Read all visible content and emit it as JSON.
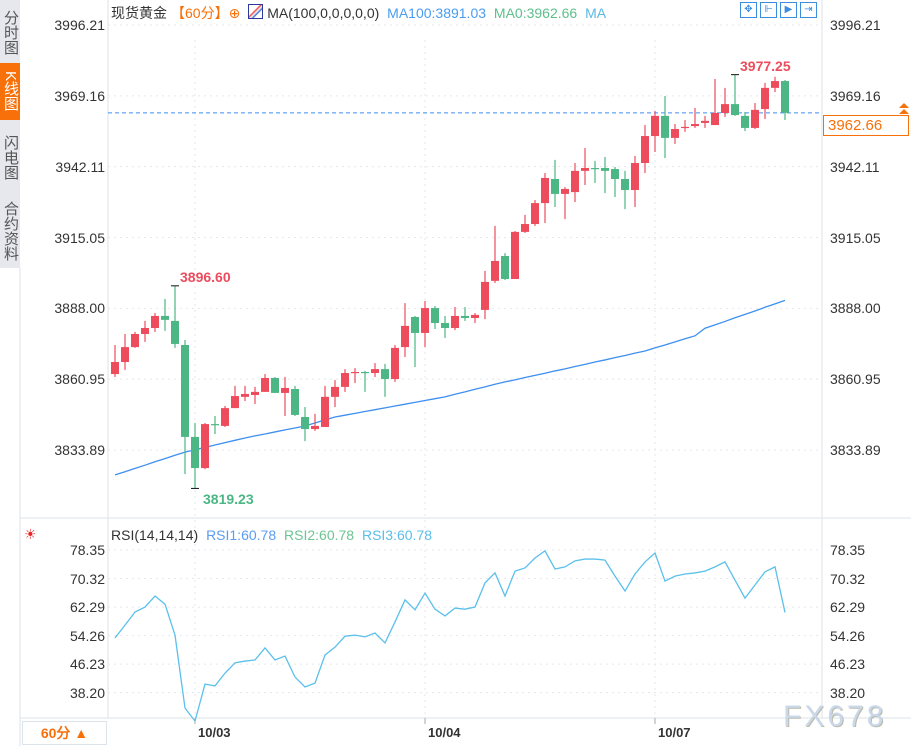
{
  "sidebar": {
    "tabs": [
      {
        "label": "分时图",
        "active": false
      },
      {
        "label": "K线图",
        "active": true
      },
      {
        "label": "闪电图",
        "active": false
      },
      {
        "label": "合约资料",
        "active": false
      }
    ]
  },
  "header": {
    "instrument": "现货黄金",
    "period": "【60分】",
    "settings_icon": "crosshair-circle-icon",
    "ma_params": "MA(100,0,0,0,0,0)",
    "ma100": "MA100:3891.03",
    "ma0": "MA0:3962.66",
    "ma_label": "MA",
    "tools": [
      "crosshair-icon",
      "fit-range-icon",
      "play-icon",
      "jump-to-latest-icon"
    ]
  },
  "colors": {
    "up": "#ec4c5c",
    "down": "#4cb784",
    "ma100": "#3d8ff0",
    "rsi": "#5bc0eb",
    "accent": "#f7700a"
  },
  "rsi_header": {
    "params": "RSI(14,14,14)",
    "rsi1": "RSI1:60.78",
    "rsi2": "RSI2:60.78",
    "rsi3": "RSI3:60.78",
    "icon": "sun-icon"
  },
  "last_price": "3962.66",
  "marks": {
    "high": "3896.60",
    "low": "3819.23",
    "recent_high": "3977.25"
  },
  "period_selector": "60分 ▲",
  "watermark": "FX678",
  "chart_data": [
    {
      "type": "candlestick",
      "title": "现货黄金",
      "y_ticks": [
        "3996.21",
        "3969.16",
        "3942.11",
        "3915.05",
        "3888.00",
        "3860.95",
        "3833.89"
      ],
      "ylim": [
        3819.23,
        3996.21
      ],
      "grid": true,
      "x_ticks": [
        {
          "label": "10/03",
          "index": 8
        },
        {
          "label": "10/04",
          "index": 31
        },
        {
          "label": "10/07",
          "index": 54
        }
      ],
      "ohlc": [
        [
          3862.9,
          3874.0,
          3861.8,
          3867.5
        ],
        [
          3867.5,
          3878.2,
          3864.5,
          3873.2
        ],
        [
          3873.2,
          3879.0,
          3872.9,
          3878.2
        ],
        [
          3878.2,
          3883.2,
          3875.2,
          3880.5
        ],
        [
          3880.5,
          3886.2,
          3879.0,
          3885.1
        ],
        [
          3885.1,
          3891.6,
          3879.4,
          3883.6
        ],
        [
          3883.2,
          3896.6,
          3872.9,
          3874.4
        ],
        [
          3874.0,
          3875.9,
          3824.7,
          3838.9
        ],
        [
          3838.9,
          3844.2,
          3819.23,
          3827.0
        ],
        [
          3827.0,
          3844.2,
          3826.6,
          3843.8
        ],
        [
          3843.8,
          3846.9,
          3840.0,
          3843.5
        ],
        [
          3843.1,
          3850.7,
          3842.7,
          3849.9
        ],
        [
          3849.9,
          3858.4,
          3849.9,
          3854.5
        ],
        [
          3854.2,
          3858.4,
          3852.6,
          3855.3
        ],
        [
          3854.9,
          3858.0,
          3851.5,
          3856.1
        ],
        [
          3856.1,
          3862.9,
          3856.1,
          3861.4
        ],
        [
          3861.4,
          3861.8,
          3855.7,
          3855.7
        ],
        [
          3855.7,
          3861.8,
          3846.9,
          3857.6
        ],
        [
          3857.2,
          3858.4,
          3846.9,
          3847.3
        ],
        [
          3846.5,
          3850.3,
          3837.3,
          3841.9
        ],
        [
          3841.9,
          3847.7,
          3841.2,
          3843.1
        ],
        [
          3842.7,
          3858.4,
          3842.7,
          3854.2
        ],
        [
          3854.2,
          3860.6,
          3850.3,
          3858.0
        ],
        [
          3858.0,
          3864.8,
          3856.1,
          3863.3
        ],
        [
          3863.3,
          3865.2,
          3859.5,
          3863.7
        ],
        [
          3863.7,
          3864.1,
          3856.1,
          3863.3
        ],
        [
          3863.3,
          3867.1,
          3861.8,
          3864.8
        ],
        [
          3864.8,
          3866.8,
          3854.2,
          3861.0
        ],
        [
          3861.0,
          3874.0,
          3859.9,
          3872.9
        ],
        [
          3873.2,
          3890.0,
          3869.4,
          3881.3
        ],
        [
          3884.7,
          3885.1,
          3865.6,
          3878.6
        ],
        [
          3878.6,
          3890.8,
          3873.2,
          3888.1
        ],
        [
          3888.1,
          3888.9,
          3880.1,
          3882.4
        ],
        [
          3882.4,
          3885.1,
          3876.7,
          3880.5
        ],
        [
          3880.5,
          3888.5,
          3879.7,
          3885.1
        ],
        [
          3885.1,
          3888.5,
          3883.2,
          3884.3
        ],
        [
          3884.3,
          3886.2,
          3882.4,
          3885.5
        ],
        [
          3887.4,
          3902.3,
          3883.9,
          3898.1
        ],
        [
          3898.5,
          3919.5,
          3897.7,
          3906.1
        ],
        [
          3908.0,
          3909.1,
          3898.8,
          3899.2
        ],
        [
          3899.2,
          3917.5,
          3899.2,
          3917.2
        ],
        [
          3917.2,
          3923.7,
          3916.8,
          3920.2
        ],
        [
          3920.2,
          3929.4,
          3919.5,
          3928.2
        ],
        [
          3928.2,
          3939.7,
          3920.6,
          3937.8
        ],
        [
          3937.4,
          3944.7,
          3926.7,
          3931.7
        ],
        [
          3931.7,
          3934.3,
          3922.1,
          3933.6
        ],
        [
          3932.4,
          3943.5,
          3928.6,
          3940.5
        ],
        [
          3940.5,
          3949.2,
          3935.1,
          3941.6
        ],
        [
          3941.6,
          3944.3,
          3935.9,
          3941.2
        ],
        [
          3941.6,
          3945.8,
          3932.0,
          3940.5
        ],
        [
          3941.2,
          3942.0,
          3930.5,
          3937.4
        ],
        [
          3937.4,
          3940.5,
          3925.9,
          3933.2
        ],
        [
          3933.2,
          3946.2,
          3926.7,
          3943.5
        ],
        [
          3943.5,
          3958.0,
          3939.7,
          3953.8
        ],
        [
          3953.8,
          3963.4,
          3947.7,
          3961.5
        ],
        [
          3961.5,
          3969.1,
          3945.4,
          3953.1
        ],
        [
          3953.1,
          3958.4,
          3950.8,
          3956.5
        ],
        [
          3956.9,
          3959.9,
          3955.4,
          3957.3
        ],
        [
          3957.6,
          3964.5,
          3956.9,
          3958.4
        ],
        [
          3958.8,
          3961.5,
          3956.9,
          3959.6
        ],
        [
          3958.0,
          3975.6,
          3958.0,
          3962.6
        ],
        [
          3962.6,
          3972.2,
          3961.1,
          3966.0
        ],
        [
          3966.0,
          3977.25,
          3961.5,
          3961.8
        ],
        [
          3961.5,
          3963.0,
          3955.7,
          3956.9
        ],
        [
          3956.9,
          3966.4,
          3956.5,
          3963.8
        ],
        [
          3964.1,
          3974.1,
          3960.3,
          3972.2
        ],
        [
          3972.2,
          3976.4,
          3970.6,
          3974.8
        ],
        [
          3974.8,
          3975.2,
          3959.9,
          3962.66
        ]
      ],
      "ma100": [
        3824.4,
        3825.6,
        3826.9,
        3828.1,
        3829.4,
        3830.6,
        3831.9,
        3833.1,
        3834.0,
        3834.9,
        3835.8,
        3836.7,
        3837.6,
        3838.5,
        3839.3,
        3840.0,
        3840.8,
        3841.6,
        3842.3,
        3843.1,
        3844.2,
        3845.4,
        3846.5,
        3847.2,
        3847.9,
        3848.6,
        3849.3,
        3850.0,
        3850.7,
        3851.4,
        3852.1,
        3852.8,
        3853.5,
        3854.2,
        3855.2,
        3856.1,
        3857.1,
        3858.0,
        3859.0,
        3859.9,
        3860.7,
        3861.6,
        3862.4,
        3863.2,
        3864.1,
        3864.9,
        3865.8,
        3866.6,
        3867.5,
        3868.3,
        3869.2,
        3870.0,
        3870.9,
        3871.7,
        3872.9,
        3874.0,
        3875.2,
        3876.4,
        3877.5,
        3880.4,
        3881.7,
        3883.0,
        3884.4,
        3885.7,
        3887.0,
        3888.4,
        3889.7,
        3891.03
      ]
    },
    {
      "type": "line",
      "title": "RSI(14,14,14)",
      "y_ticks": [
        "78.35",
        "70.32",
        "62.29",
        "54.26",
        "46.23",
        "38.20"
      ],
      "ylim": [
        30.2,
        78.35
      ],
      "grid": true,
      "values": [
        53.6,
        57.2,
        60.9,
        62.3,
        65.4,
        63.1,
        54.4,
        33.9,
        30.2,
        40.6,
        40.1,
        43.7,
        46.6,
        47.1,
        47.4,
        50.8,
        47.4,
        48.5,
        42.6,
        39.8,
        40.9,
        48.8,
        51.0,
        54.1,
        54.4,
        53.9,
        55.0,
        52.2,
        58.1,
        64.3,
        61.5,
        66.2,
        61.7,
        59.8,
        62.0,
        61.7,
        62.3,
        69.1,
        71.9,
        65.4,
        72.4,
        73.3,
        76.1,
        78.1,
        73.0,
        73.6,
        75.3,
        75.8,
        75.8,
        75.5,
        71.0,
        66.8,
        71.6,
        75.0,
        77.5,
        69.6,
        71.0,
        71.6,
        71.9,
        72.4,
        73.6,
        75.0,
        69.9,
        64.8,
        68.5,
        72.2,
        73.6,
        60.78
      ]
    }
  ]
}
